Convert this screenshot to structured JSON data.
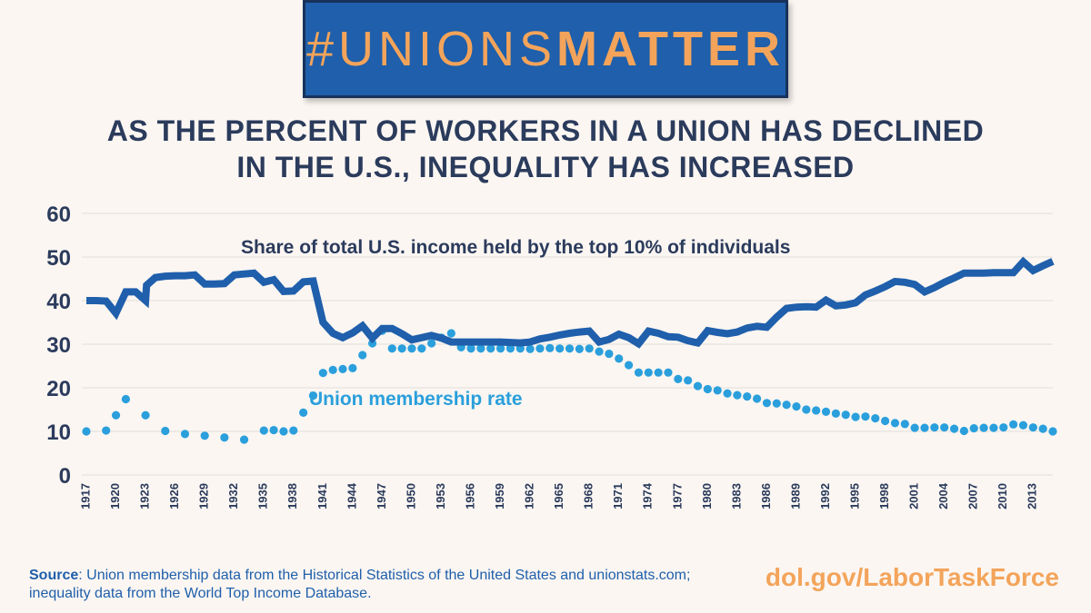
{
  "banner": {
    "hash": "#",
    "unions": "UNIONS",
    "matter": "MATTER"
  },
  "headline": {
    "line1": "AS THE PERCENT OF WORKERS IN A UNION HAS DECLINED",
    "line2": "IN THE U.S., INEQUALITY HAS INCREASED"
  },
  "footer": {
    "source_label": "Source",
    "source_text": ": Union membership data from the Historical Statistics of the United States and unionstats.com;",
    "source_text2": "inequality data from the World Top Income Database.",
    "site": "dol.gov/LaborTaskForce"
  },
  "colors": {
    "income": "#1f5fab",
    "union": "#2a9fdc",
    "axis": "#2b3b5c",
    "grid": "#e2ddd9",
    "accent": "#f3a45a"
  },
  "chart_data": {
    "type": "line",
    "grid": true,
    "ylim": [
      0,
      60
    ],
    "yticks": [
      0,
      10,
      20,
      30,
      40,
      50,
      60
    ],
    "xlim": [
      1917,
      2015
    ],
    "xticks": [
      1917,
      1920,
      1923,
      1926,
      1929,
      1932,
      1935,
      1938,
      1941,
      1944,
      1947,
      1950,
      1953,
      1956,
      1959,
      1962,
      1965,
      1968,
      1971,
      1974,
      1977,
      1980,
      1983,
      1986,
      1989,
      1992,
      1995,
      1998,
      2001,
      2004,
      2007,
      2010,
      2013
    ],
    "series": [
      {
        "name": "Share of total U.S. income held by the top 10% of individuals",
        "style": "solid",
        "x": [
          1917,
          1918,
          1919,
          1920,
          1921,
          1922,
          1923,
          1923.1,
          1924,
          1925,
          1926,
          1927,
          1928,
          1929,
          1930,
          1931,
          1932,
          1933,
          1934,
          1935,
          1936,
          1937,
          1938,
          1939,
          1940,
          1941,
          1942,
          1943,
          1944,
          1945,
          1946,
          1947,
          1948,
          1949,
          1950,
          1951,
          1952,
          1953,
          1954,
          1955,
          1956,
          1957,
          1958,
          1959,
          1960,
          1961,
          1962,
          1963,
          1964,
          1965,
          1966,
          1967,
          1968,
          1969,
          1970,
          1971,
          1972,
          1973,
          1974,
          1975,
          1976,
          1977,
          1978,
          1979,
          1980,
          1981,
          1982,
          1983,
          1984,
          1985,
          1986,
          1987,
          1988,
          1989,
          1990,
          1991,
          1992,
          1993,
          1994,
          1995,
          1996,
          1997,
          1998,
          1999,
          2000,
          2001,
          2002,
          2003,
          2004,
          2005,
          2006,
          2007,
          2008,
          2009,
          2010,
          2011,
          2012,
          2013,
          2014,
          2015
        ],
        "y": [
          40.0,
          40.0,
          39.9,
          37.1,
          42.0,
          42.0,
          40.0,
          43.5,
          45.3,
          45.6,
          45.7,
          45.7,
          45.9,
          43.8,
          43.8,
          43.9,
          45.9,
          46.1,
          46.3,
          44.2,
          44.8,
          42.1,
          42.2,
          44.3,
          44.5,
          35.0,
          32.5,
          31.5,
          32.6,
          34.2,
          31.4,
          33.6,
          33.6,
          32.4,
          31.0,
          31.5,
          32.0,
          31.4,
          30.5,
          30.5,
          30.5,
          30.5,
          30.5,
          30.5,
          30.4,
          30.3,
          30.5,
          31.2,
          31.6,
          32.1,
          32.5,
          32.8,
          33.0,
          30.5,
          31.1,
          32.3,
          31.5,
          30.1,
          33.0,
          32.5,
          31.7,
          31.6,
          30.8,
          30.3,
          33.1,
          32.7,
          32.4,
          32.8,
          33.7,
          34.1,
          33.9,
          36.2,
          38.2,
          38.5,
          38.6,
          38.5,
          40.1,
          38.8,
          39.0,
          39.5,
          41.3,
          42.2,
          43.2,
          44.4,
          44.2,
          43.7,
          42.0,
          43.0,
          44.2,
          45.2,
          46.3,
          46.3,
          46.3,
          46.4,
          46.4,
          46.4,
          48.9,
          46.9,
          48.0,
          49.0
        ]
      },
      {
        "name": "Union membership rate",
        "style": "dotted",
        "x": [
          1917,
          1919,
          1920,
          1921,
          1923,
          1925,
          1927,
          1929,
          1931,
          1933,
          1935,
          1936,
          1937,
          1938,
          1939,
          1940,
          1941,
          1942,
          1943,
          1944,
          1945,
          1946,
          1947,
          1948,
          1949,
          1950,
          1951,
          1952,
          1953,
          1954,
          1955,
          1956,
          1957,
          1958,
          1959,
          1960,
          1961,
          1962,
          1963,
          1964,
          1965,
          1966,
          1967,
          1968,
          1969,
          1970,
          1971,
          1972,
          1973,
          1974,
          1975,
          1976,
          1977,
          1978,
          1979,
          1980,
          1981,
          1982,
          1983,
          1984,
          1985,
          1986,
          1987,
          1988,
          1989,
          1990,
          1991,
          1992,
          1993,
          1994,
          1995,
          1996,
          1997,
          1998,
          1999,
          2000,
          2001,
          2002,
          2003,
          2004,
          2005,
          2006,
          2007,
          2008,
          2009,
          2010,
          2011,
          2012,
          2013,
          2014,
          2015
        ],
        "y": [
          10.0,
          10.2,
          13.7,
          17.4,
          13.7,
          10.1,
          9.4,
          9.0,
          8.6,
          8.1,
          10.2,
          10.3,
          10.0,
          10.2,
          14.3,
          18.2,
          23.4,
          24.1,
          24.3,
          24.5,
          27.5,
          30.2,
          33.1,
          29.0,
          29.0,
          29.0,
          29.0,
          30.2,
          31.5,
          32.5,
          29.3,
          29.0,
          29.0,
          29.0,
          29.0,
          29.0,
          29.0,
          28.9,
          29.0,
          29.1,
          29.0,
          29.0,
          28.9,
          29.0,
          28.3,
          27.8,
          26.7,
          25.2,
          23.5,
          23.5,
          23.5,
          23.5,
          22.0,
          21.7,
          20.4,
          19.7,
          19.4,
          18.7,
          18.3,
          18.0,
          17.5,
          16.5,
          16.4,
          16.1,
          15.7,
          15.0,
          14.8,
          14.5,
          14.1,
          13.8,
          13.3,
          13.4,
          13.0,
          12.4,
          11.9,
          11.7,
          10.8,
          10.8,
          10.9,
          10.9,
          10.6,
          10.1,
          10.7,
          10.8,
          10.8,
          10.9,
          11.6,
          11.4,
          10.9,
          10.6,
          10.0
        ]
      }
    ]
  }
}
